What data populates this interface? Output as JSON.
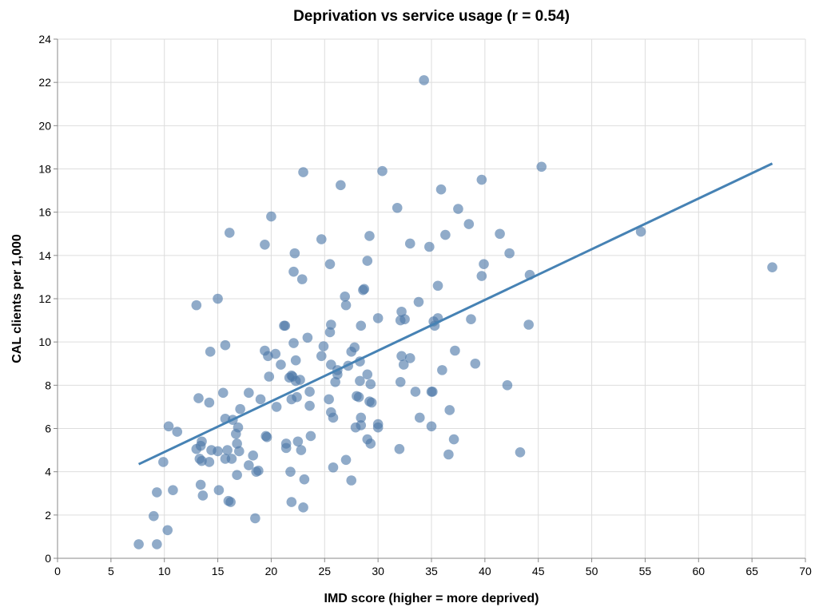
{
  "chart_data": {
    "type": "scatter",
    "title": "Deprivation vs service usage (r = 0.54)",
    "xlabel": "IMD score (higher = more deprived)",
    "ylabel": "CAL clients per 1,000",
    "xlim": [
      0,
      70
    ],
    "ylim": [
      0,
      24
    ],
    "x_ticks": [
      0,
      5,
      10,
      15,
      20,
      25,
      30,
      35,
      40,
      45,
      50,
      55,
      60,
      65,
      70
    ],
    "y_ticks": [
      0,
      2,
      4,
      6,
      8,
      10,
      12,
      14,
      16,
      18,
      20,
      22,
      24
    ],
    "grid": true,
    "colors": {
      "points": "#4c78a8",
      "trend": "#4682b4",
      "grid": "#dddddd",
      "axis": "#888888"
    },
    "trendline": {
      "x": [
        7.6,
        66.9
      ],
      "y": [
        4.35,
        18.25
      ]
    },
    "points": [
      [
        7.6,
        0.65
      ],
      [
        9.3,
        0.65
      ],
      [
        10.3,
        1.3
      ],
      [
        9.0,
        1.95
      ],
      [
        9.3,
        3.05
      ],
      [
        10.8,
        3.15
      ],
      [
        9.9,
        4.45
      ],
      [
        10.4,
        6.1
      ],
      [
        11.2,
        5.85
      ],
      [
        13.0,
        11.7
      ],
      [
        13.2,
        7.4
      ],
      [
        13.0,
        5.05
      ],
      [
        13.4,
        5.2
      ],
      [
        13.5,
        5.4
      ],
      [
        13.3,
        4.6
      ],
      [
        13.5,
        4.5
      ],
      [
        13.4,
        3.4
      ],
      [
        13.6,
        2.9
      ],
      [
        14.2,
        7.2
      ],
      [
        14.3,
        9.55
      ],
      [
        14.2,
        4.45
      ],
      [
        14.4,
        5.0
      ],
      [
        15.0,
        12.0
      ],
      [
        15.0,
        4.95
      ],
      [
        15.1,
        3.15
      ],
      [
        15.5,
        7.65
      ],
      [
        15.7,
        6.45
      ],
      [
        15.7,
        4.6
      ],
      [
        15.9,
        5.0
      ],
      [
        15.7,
        9.85
      ],
      [
        16.0,
        2.65
      ],
      [
        16.2,
        2.6
      ],
      [
        16.1,
        15.05
      ],
      [
        16.3,
        4.6
      ],
      [
        16.4,
        6.4
      ],
      [
        16.7,
        5.75
      ],
      [
        16.8,
        3.85
      ],
      [
        16.8,
        5.3
      ],
      [
        16.9,
        6.05
      ],
      [
        17.0,
        4.95
      ],
      [
        17.1,
        6.9
      ],
      [
        17.9,
        4.3
      ],
      [
        17.9,
        7.65
      ],
      [
        18.3,
        4.75
      ],
      [
        18.5,
        1.85
      ],
      [
        18.6,
        4.0
      ],
      [
        18.8,
        4.05
      ],
      [
        19.0,
        7.35
      ],
      [
        19.4,
        14.5
      ],
      [
        19.4,
        9.6
      ],
      [
        19.5,
        5.65
      ],
      [
        19.6,
        5.6
      ],
      [
        19.7,
        9.35
      ],
      [
        19.8,
        8.4
      ],
      [
        20.0,
        15.8
      ],
      [
        20.4,
        9.45
      ],
      [
        20.5,
        7.0
      ],
      [
        20.9,
        8.95
      ],
      [
        21.2,
        10.75
      ],
      [
        21.3,
        10.75
      ],
      [
        21.4,
        5.3
      ],
      [
        21.4,
        5.1
      ],
      [
        21.7,
        8.35
      ],
      [
        21.8,
        4.0
      ],
      [
        21.9,
        2.6
      ],
      [
        21.9,
        8.45
      ],
      [
        21.9,
        7.35
      ],
      [
        22.0,
        8.4
      ],
      [
        22.1,
        9.95
      ],
      [
        22.1,
        13.25
      ],
      [
        22.2,
        14.1
      ],
      [
        22.3,
        9.15
      ],
      [
        22.3,
        8.2
      ],
      [
        22.4,
        7.45
      ],
      [
        22.5,
        5.4
      ],
      [
        22.7,
        8.25
      ],
      [
        22.8,
        5.0
      ],
      [
        22.9,
        12.9
      ],
      [
        23.0,
        17.85
      ],
      [
        23.0,
        2.35
      ],
      [
        23.1,
        3.65
      ],
      [
        23.4,
        10.2
      ],
      [
        23.6,
        7.7
      ],
      [
        23.6,
        7.05
      ],
      [
        23.7,
        5.65
      ],
      [
        24.7,
        14.75
      ],
      [
        24.7,
        9.35
      ],
      [
        24.9,
        9.8
      ],
      [
        25.4,
        7.35
      ],
      [
        25.5,
        13.6
      ],
      [
        25.5,
        10.45
      ],
      [
        25.6,
        10.8
      ],
      [
        25.6,
        8.95
      ],
      [
        25.6,
        6.75
      ],
      [
        25.8,
        6.5
      ],
      [
        25.8,
        4.2
      ],
      [
        26.0,
        8.15
      ],
      [
        26.2,
        8.5
      ],
      [
        26.2,
        8.7
      ],
      [
        26.5,
        17.25
      ],
      [
        26.9,
        12.1
      ],
      [
        27.0,
        11.7
      ],
      [
        27.0,
        4.55
      ],
      [
        27.2,
        8.9
      ],
      [
        27.5,
        9.55
      ],
      [
        27.5,
        3.6
      ],
      [
        27.8,
        9.75
      ],
      [
        27.9,
        6.05
      ],
      [
        28.0,
        7.5
      ],
      [
        28.2,
        7.45
      ],
      [
        28.3,
        9.1
      ],
      [
        28.3,
        8.2
      ],
      [
        28.4,
        10.75
      ],
      [
        28.4,
        6.5
      ],
      [
        28.4,
        6.15
      ],
      [
        28.6,
        12.4
      ],
      [
        28.7,
        12.45
      ],
      [
        29.0,
        13.75
      ],
      [
        29.0,
        8.5
      ],
      [
        29.0,
        5.5
      ],
      [
        29.2,
        14.9
      ],
      [
        29.2,
        7.25
      ],
      [
        29.3,
        8.05
      ],
      [
        29.3,
        5.3
      ],
      [
        29.4,
        7.2
      ],
      [
        30.0,
        11.1
      ],
      [
        30.0,
        6.2
      ],
      [
        30.0,
        6.05
      ],
      [
        30.4,
        17.9
      ],
      [
        31.8,
        16.2
      ],
      [
        32.0,
        5.05
      ],
      [
        32.1,
        8.15
      ],
      [
        32.1,
        11.0
      ],
      [
        32.2,
        11.4
      ],
      [
        32.2,
        9.35
      ],
      [
        32.4,
        8.95
      ],
      [
        32.5,
        11.05
      ],
      [
        33.0,
        14.55
      ],
      [
        33.0,
        9.25
      ],
      [
        33.5,
        7.7
      ],
      [
        33.8,
        11.85
      ],
      [
        33.9,
        6.5
      ],
      [
        34.3,
        22.1
      ],
      [
        34.8,
        14.4
      ],
      [
        35.0,
        6.1
      ],
      [
        35.0,
        7.7
      ],
      [
        35.1,
        7.7
      ],
      [
        35.2,
        10.95
      ],
      [
        35.3,
        10.75
      ],
      [
        35.6,
        12.6
      ],
      [
        35.6,
        11.1
      ],
      [
        35.9,
        17.05
      ],
      [
        36.0,
        8.7
      ],
      [
        36.3,
        14.95
      ],
      [
        36.6,
        4.8
      ],
      [
        36.7,
        6.85
      ],
      [
        37.1,
        5.5
      ],
      [
        37.2,
        9.6
      ],
      [
        37.5,
        16.15
      ],
      [
        38.5,
        15.45
      ],
      [
        38.7,
        11.05
      ],
      [
        39.1,
        9.0
      ],
      [
        39.7,
        17.5
      ],
      [
        39.7,
        13.05
      ],
      [
        39.9,
        13.6
      ],
      [
        41.4,
        15.0
      ],
      [
        42.1,
        8.0
      ],
      [
        42.3,
        14.1
      ],
      [
        43.3,
        4.9
      ],
      [
        44.1,
        10.8
      ],
      [
        44.2,
        13.1
      ],
      [
        45.3,
        18.1
      ],
      [
        54.6,
        15.1
      ],
      [
        66.9,
        13.45
      ]
    ]
  }
}
